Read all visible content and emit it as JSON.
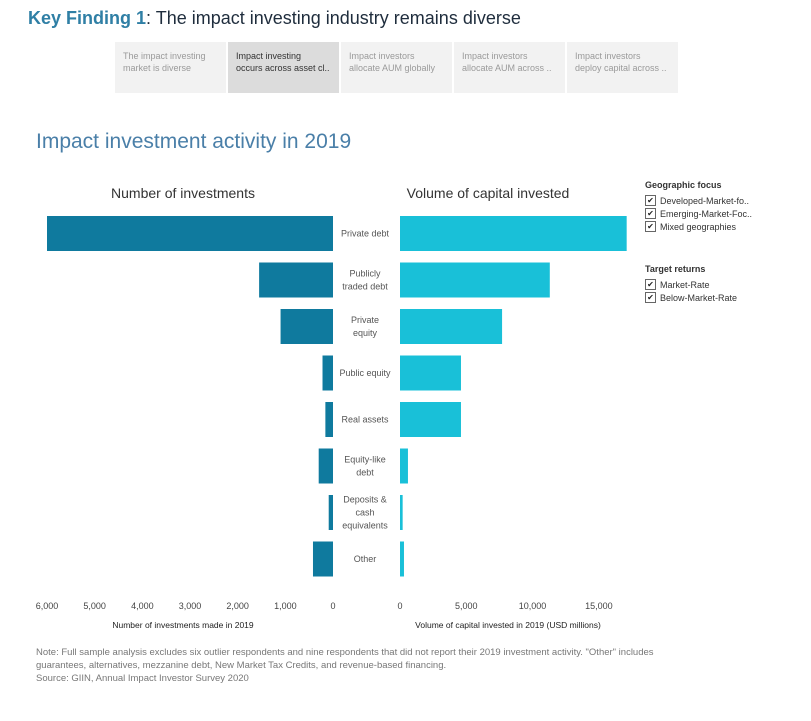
{
  "header": {
    "key_finding_label": "Key Finding 1",
    "key_finding_text": ": The impact investing industry remains diverse"
  },
  "tabs": [
    {
      "label": "The impact investing\nmarket is diverse",
      "active": false
    },
    {
      "label": "Impact investing\noccurs across asset cl..",
      "active": true
    },
    {
      "label": "Impact investors\nallocate AUM globally",
      "active": false
    },
    {
      "label": "Impact investors\nallocate AUM across ..",
      "active": false
    },
    {
      "label": "Impact investors\ndeploy capital across ..",
      "active": false
    }
  ],
  "chart_title": "Impact investment activity in 2019",
  "legend": {
    "geographic_title": "Geographic focus",
    "geographic_items": [
      "Developed-Market-fo..",
      "Emerging-Market-Foc..",
      "Mixed geographies"
    ],
    "returns_title": "Target returns",
    "returns_items": [
      "Market-Rate",
      "Below-Market-Rate"
    ],
    "check_glyph": "✔"
  },
  "chart_data": {
    "type": "bar",
    "orientation": "horizontal-butterfly",
    "categories": [
      [
        "Private debt"
      ],
      [
        "Publicly",
        "traded debt"
      ],
      [
        "Private",
        "equity"
      ],
      [
        "Public equity"
      ],
      [
        "Real assets"
      ],
      [
        "Equity-like",
        "debt"
      ],
      [
        "Deposits &",
        "cash",
        "equivalents"
      ],
      [
        "Other"
      ]
    ],
    "left": {
      "header": "Number of investments",
      "xlabel": "Number of investments made in 2019",
      "xlim": [
        0,
        6000
      ],
      "ticks": [
        6000,
        5000,
        4000,
        3000,
        2000,
        1000,
        0
      ],
      "tick_labels": [
        "6,000",
        "5,000",
        "4,000",
        "3,000",
        "2,000",
        "1,000",
        "0"
      ],
      "values": [
        6000,
        1550,
        1100,
        220,
        160,
        300,
        90,
        420
      ],
      "color": "#0f7a9e"
    },
    "right": {
      "header": "Volume of capital invested",
      "xlabel": "Volume of capital invested in 2019 (USD millions)",
      "xlim": [
        0,
        17200
      ],
      "ticks": [
        0,
        5000,
        10000,
        15000
      ],
      "tick_labels": [
        "0",
        "5,000",
        "10,000",
        "15,000"
      ],
      "values": [
        17100,
        11300,
        7700,
        4600,
        4600,
        600,
        200,
        300
      ],
      "color": "#19c0d8"
    }
  },
  "note": {
    "line1": "Note: Full sample analysis excludes six outlier respondents and nine respondents that did not report their 2019 investment activity. \"Other\" includes",
    "line2": "guarantees, alternatives, mezzanine debt, New Market Tax Credits, and revenue-based financing.",
    "line3": "Source: GIIN, Annual Impact Investor Survey 2020"
  }
}
